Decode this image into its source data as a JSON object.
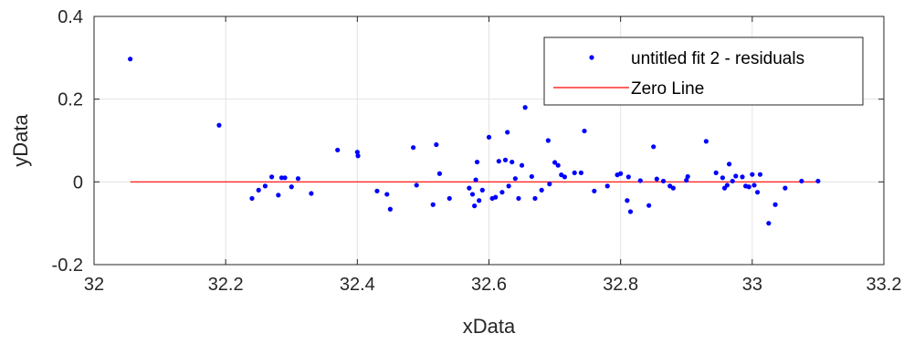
{
  "chart_data": {
    "type": "scatter",
    "xlabel": "xData",
    "ylabel": "yData",
    "xlim": [
      32,
      33.2
    ],
    "ylim": [
      -0.2,
      0.4
    ],
    "xticks": [
      32,
      32.2,
      32.4,
      32.6,
      32.8,
      33,
      33.2
    ],
    "yticks": [
      -0.2,
      0,
      0.2,
      0.4
    ],
    "xtick_labels": [
      "32",
      "32.2",
      "32.4",
      "32.6",
      "32.8",
      "33",
      "33.2"
    ],
    "ytick_labels": [
      "-0.2",
      "0",
      "0.2",
      "0.4"
    ],
    "grid": true,
    "legend_position": "top-right",
    "series": [
      {
        "name": "untitled fit 2 - residuals",
        "kind": "points",
        "color": "#0000ff",
        "x": [
          32.055,
          32.19,
          32.24,
          32.25,
          32.26,
          32.27,
          32.28,
          32.285,
          32.29,
          32.3,
          32.31,
          32.33,
          32.37,
          32.4,
          32.401,
          32.43,
          32.445,
          32.45,
          32.485,
          32.49,
          32.515,
          32.52,
          32.525,
          32.54,
          32.57,
          32.575,
          32.578,
          32.58,
          32.582,
          32.585,
          32.59,
          32.6,
          32.605,
          32.61,
          32.615,
          32.62,
          32.625,
          32.628,
          32.63,
          32.635,
          32.64,
          32.645,
          32.65,
          32.655,
          32.665,
          32.67,
          32.68,
          32.69,
          32.692,
          32.7,
          32.705,
          32.71,
          32.715,
          32.73,
          32.74,
          32.745,
          32.76,
          32.78,
          32.795,
          32.8,
          32.81,
          32.812,
          32.815,
          32.83,
          32.843,
          32.85,
          32.855,
          32.865,
          32.875,
          32.88,
          32.9,
          32.902,
          32.93,
          32.945,
          32.955,
          32.958,
          32.962,
          32.965,
          32.97,
          32.975,
          32.985,
          32.99,
          32.995,
          33.0,
          33.003,
          33.008,
          33.012,
          33.025,
          33.035,
          33.05,
          33.075,
          33.1
        ],
        "y": [
          0.297,
          0.137,
          -0.04,
          -0.02,
          -0.01,
          0.012,
          -0.032,
          0.01,
          0.01,
          -0.012,
          0.008,
          -0.028,
          0.077,
          0.072,
          0.063,
          -0.022,
          -0.03,
          -0.066,
          0.083,
          -0.008,
          -0.055,
          0.09,
          0.02,
          -0.04,
          -0.015,
          -0.03,
          -0.058,
          0.005,
          0.048,
          -0.045,
          -0.02,
          0.108,
          -0.04,
          -0.037,
          0.05,
          -0.025,
          0.053,
          0.12,
          -0.01,
          0.048,
          0.008,
          -0.04,
          0.04,
          0.18,
          0.013,
          -0.04,
          -0.02,
          0.1,
          -0.005,
          0.047,
          0.04,
          0.017,
          0.012,
          0.022,
          0.022,
          0.123,
          -0.022,
          -0.01,
          0.017,
          0.02,
          -0.045,
          0.012,
          -0.072,
          0.003,
          -0.057,
          0.085,
          0.007,
          0.002,
          -0.01,
          -0.015,
          0.004,
          0.013,
          0.098,
          0.022,
          0.01,
          -0.015,
          -0.008,
          0.043,
          0.002,
          0.014,
          0.012,
          -0.01,
          -0.012,
          0.018,
          -0.008,
          -0.025,
          0.018,
          -0.1,
          -0.055,
          -0.015,
          0.002,
          0.002
        ]
      },
      {
        "name": "Zero Line",
        "kind": "line",
        "color": "#ff0000",
        "x": [
          32.055,
          33.1
        ],
        "y": [
          0,
          0
        ]
      }
    ]
  }
}
